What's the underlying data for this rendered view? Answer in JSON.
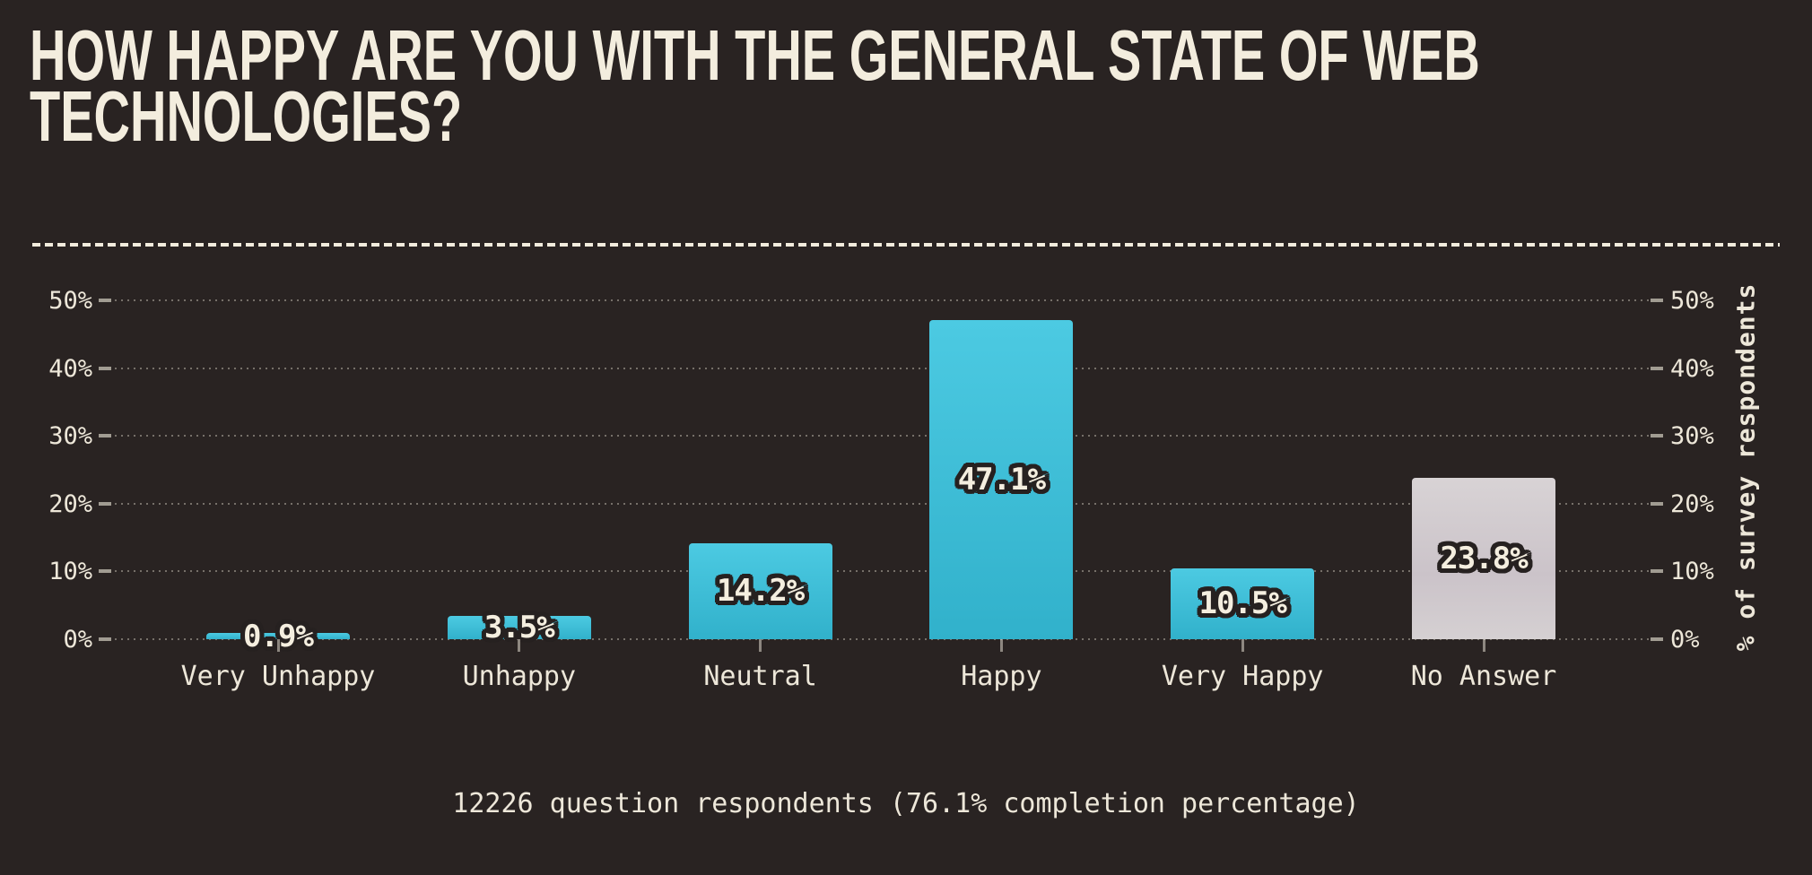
{
  "title": {
    "text": "HOW HAPPY ARE YOU WITH THE GENERAL STATE OF WEB TECHNOLOGIES?",
    "lines": [
      "HOW HAPPY ARE YOU WITH THE GENERAL STATE OF WEB",
      "TECHNOLOGIES?"
    ]
  },
  "chart_data": {
    "type": "bar",
    "title": "HOW HAPPY ARE YOU WITH THE GENERAL STATE OF WEB TECHNOLOGIES?",
    "categories": [
      "Very Unhappy",
      "Unhappy",
      "Neutral",
      "Happy",
      "Very Happy",
      "No Answer"
    ],
    "values": [
      0.9,
      3.5,
      14.2,
      47.1,
      10.5,
      23.8
    ],
    "value_labels": [
      "0.9%",
      "3.5%",
      "14.2%",
      "47.1%",
      "10.5%",
      "23.8%"
    ],
    "bar_styles": [
      "cyan",
      "cyan",
      "cyan",
      "cyan",
      "cyan",
      "gray"
    ],
    "y_ticks": [
      0,
      10,
      20,
      30,
      40,
      50
    ],
    "y_tick_labels": [
      "0%",
      "10%",
      "20%",
      "30%",
      "40%",
      "50%"
    ],
    "ylim": [
      0,
      50
    ],
    "xlabel": "",
    "ylabel": "% of survey respondents",
    "legend": "none",
    "grid": "horizontal-dotted"
  },
  "footer": {
    "text": "12226 question respondents (76.1% completion percentage)"
  },
  "colors": {
    "background": "#292322",
    "title_text": "#F3EDDE",
    "axis_text": "#EDE7D9",
    "grid_dot": "rgba(242,236,221,0.38)",
    "tick": "rgba(242,236,221,0.6)",
    "baseline_tick": "rgba(242,236,221,0.5)",
    "separator_dash": "#F2ECDD",
    "bar_cyan_top": "#4CCAE2",
    "bar_cyan_bottom": "#31B1CB",
    "bar_gray_top": "#D8D3D5",
    "bar_gray_mid": "#CBC3C9",
    "bar_gray_bottom": "#D5D0D2",
    "value_label_fill": "#F4EEDF",
    "value_label_outline": "#262120"
  }
}
